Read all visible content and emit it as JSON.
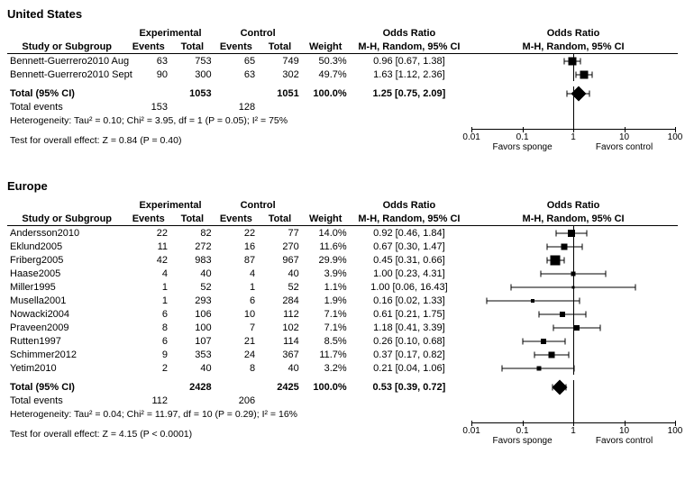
{
  "axis": {
    "ticks": [
      0.01,
      0.1,
      1,
      10,
      100
    ],
    "tick_labels": [
      "0.01",
      "0.1",
      "1",
      "10",
      "100"
    ],
    "favors_left": "Favors sponge",
    "favors_right": "Favors control"
  },
  "headers": {
    "study": "Study or Subgroup",
    "exp": "Experimental",
    "ctrl": "Control",
    "events": "Events",
    "total": "Total",
    "weight": "Weight",
    "or": "Odds Ratio",
    "or_sub": "M-H, Random, 95% CI"
  },
  "panels": [
    {
      "title": "United States",
      "rows": [
        {
          "study": "Bennett-Guerrero2010 Aug",
          "ee": 63,
          "et": 753,
          "ce": 65,
          "ct": 749,
          "w": "50.3%",
          "ci": "0.96 [0.67, 1.38]",
          "or": 0.96,
          "lo": 0.67,
          "hi": 1.38,
          "ws": 9
        },
        {
          "study": "Bennett-Guerrero2010 Sept",
          "ee": 90,
          "et": 300,
          "ce": 63,
          "ct": 302,
          "w": "49.7%",
          "ci": "1.63 [1.12, 2.36]",
          "or": 1.63,
          "lo": 1.12,
          "hi": 2.36,
          "ws": 9
        }
      ],
      "totals": {
        "label": "Total (95% CI)",
        "et": 1053,
        "ct": 1051,
        "w": "100.0%",
        "ci": "1.25 [0.75, 2.09]",
        "or": 1.25,
        "lo": 0.75,
        "hi": 2.09,
        "diamond": 12
      },
      "total_events": {
        "label": "Total events",
        "ee": 153,
        "ce": 128
      },
      "het": "Heterogeneity: Tau² = 0.10; Chi² = 3.95, df = 1 (P = 0.05); I² = 75%",
      "ove": "Test for overall effect: Z = 0.84 (P = 0.40)"
    },
    {
      "title": "Europe",
      "rows": [
        {
          "study": "Andersson2010",
          "ee": 22,
          "et": 82,
          "ce": 22,
          "ct": 77,
          "w": "14.0%",
          "ci": "0.92 [0.46, 1.84]",
          "or": 0.92,
          "lo": 0.46,
          "hi": 1.84,
          "ws": 8
        },
        {
          "study": "Eklund2005",
          "ee": 11,
          "et": 272,
          "ce": 16,
          "ct": 270,
          "w": "11.6%",
          "ci": "0.67 [0.30, 1.47]",
          "or": 0.67,
          "lo": 0.3,
          "hi": 1.47,
          "ws": 7
        },
        {
          "study": "Friberg2005",
          "ee": 42,
          "et": 983,
          "ce": 87,
          "ct": 967,
          "w": "29.9%",
          "ci": "0.45 [0.31, 0.66]",
          "or": 0.45,
          "lo": 0.31,
          "hi": 0.66,
          "ws": 11
        },
        {
          "study": "Haase2005",
          "ee": 4,
          "et": 40,
          "ce": 4,
          "ct": 40,
          "w": "3.9%",
          "ci": "1.00 [0.23, 4.31]",
          "or": 1.0,
          "lo": 0.23,
          "hi": 4.31,
          "ws": 5
        },
        {
          "study": "Miller1995",
          "ee": 1,
          "et": 52,
          "ce": 1,
          "ct": 52,
          "w": "1.1%",
          "ci": "1.00 [0.06, 16.43]",
          "or": 1.0,
          "lo": 0.06,
          "hi": 16.43,
          "ws": 3
        },
        {
          "study": "Musella2001",
          "ee": 1,
          "et": 293,
          "ce": 6,
          "ct": 284,
          "w": "1.9%",
          "ci": "0.16 [0.02, 1.33]",
          "or": 0.16,
          "lo": 0.02,
          "hi": 1.33,
          "ws": 4
        },
        {
          "study": "Nowacki2004",
          "ee": 6,
          "et": 106,
          "ce": 10,
          "ct": 112,
          "w": "7.1%",
          "ci": "0.61 [0.21, 1.75]",
          "or": 0.61,
          "lo": 0.21,
          "hi": 1.75,
          "ws": 6
        },
        {
          "study": "Praveen2009",
          "ee": 8,
          "et": 100,
          "ce": 7,
          "ct": 102,
          "w": "7.1%",
          "ci": "1.18 [0.41, 3.39]",
          "or": 1.18,
          "lo": 0.41,
          "hi": 3.39,
          "ws": 6
        },
        {
          "study": "Rutten1997",
          "ee": 6,
          "et": 107,
          "ce": 21,
          "ct": 114,
          "w": "8.5%",
          "ci": "0.26 [0.10, 0.68]",
          "or": 0.26,
          "lo": 0.1,
          "hi": 0.68,
          "ws": 6
        },
        {
          "study": "Schimmer2012",
          "ee": 9,
          "et": 353,
          "ce": 24,
          "ct": 367,
          "w": "11.7%",
          "ci": "0.37 [0.17, 0.82]",
          "or": 0.37,
          "lo": 0.17,
          "hi": 0.82,
          "ws": 7
        },
        {
          "study": "Yetim2010",
          "ee": 2,
          "et": 40,
          "ce": 8,
          "ct": 40,
          "w": "3.2%",
          "ci": "0.21 [0.04, 1.06]",
          "or": 0.21,
          "lo": 0.04,
          "hi": 1.06,
          "ws": 5
        }
      ],
      "totals": {
        "label": "Total (95% CI)",
        "et": 2428,
        "ct": 2425,
        "w": "100.0%",
        "ci": "0.53 [0.39, 0.72]",
        "or": 0.53,
        "lo": 0.39,
        "hi": 0.72,
        "diamond": 12
      },
      "total_events": {
        "label": "Total events",
        "ee": 112,
        "ce": 206
      },
      "het": "Heterogeneity: Tau² = 0.04; Chi² = 11.97, df = 10 (P = 0.29); I² = 16%",
      "ove": "Test for overall effect: Z = 4.15 (P < 0.0001)"
    }
  ]
}
